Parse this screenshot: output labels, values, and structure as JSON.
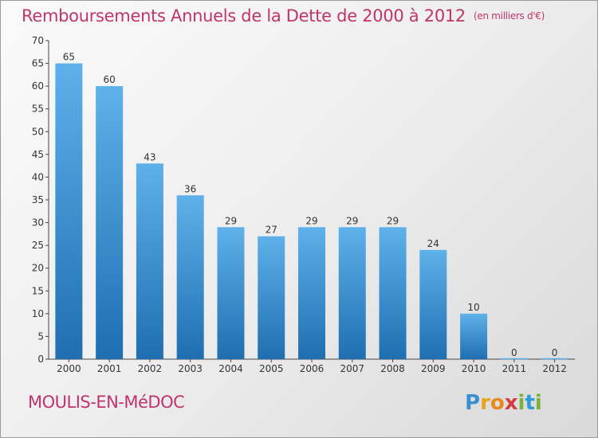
{
  "header": {
    "title": "Remboursements Annuels de la Dette de 2000 à 2012",
    "unit": "(en milliers d'€)"
  },
  "footer": {
    "place": "MOULIS-EN-MéDOC",
    "logo_letters": [
      "P",
      "r",
      "o",
      "x",
      "i",
      "t",
      "i"
    ]
  },
  "colors": {
    "title": "#c0346a",
    "bar_top": "#5eb1ea",
    "bar_bottom": "#1f6fb0"
  },
  "chart_data": {
    "type": "bar",
    "title": "Remboursements Annuels de la Dette de 2000 à 2012",
    "subtitle": "(en milliers d'€)",
    "xlabel": "",
    "ylabel": "",
    "categories": [
      "2000",
      "2001",
      "2002",
      "2003",
      "2004",
      "2005",
      "2006",
      "2007",
      "2008",
      "2009",
      "2010",
      "2011",
      "2012"
    ],
    "values": [
      65,
      60,
      43,
      36,
      29,
      27,
      29,
      29,
      29,
      24,
      10,
      0,
      0
    ],
    "ylim": [
      0,
      70
    ],
    "yticks": [
      0,
      5,
      10,
      15,
      20,
      25,
      30,
      35,
      40,
      45,
      50,
      55,
      60,
      65,
      70
    ],
    "grid": false,
    "legend": "none"
  }
}
